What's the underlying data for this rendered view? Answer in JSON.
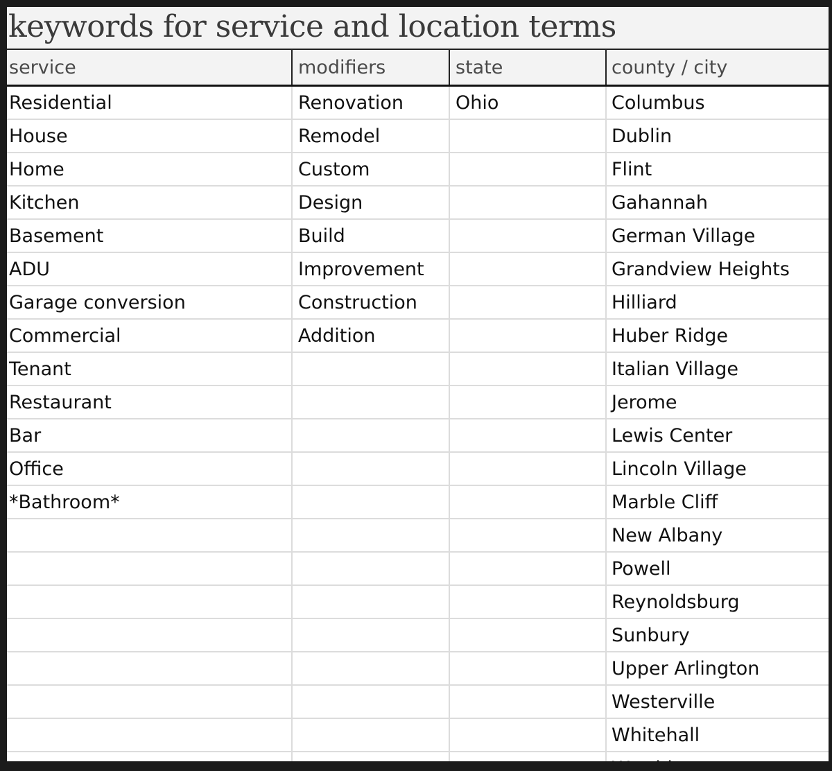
{
  "title": "keywords for service and location terms",
  "headers": [
    "service",
    "modifiers",
    "state",
    "county / city"
  ],
  "columns": {
    "service": [
      "Residential",
      "House",
      "Home",
      "Kitchen",
      "Basement",
      "ADU",
      "Garage conversion",
      "Commercial",
      "Tenant",
      "Restaurant",
      "Bar",
      "Office",
      "*Bathroom*"
    ],
    "modifiers": [
      "Renovation",
      "Remodel",
      "Custom",
      "Design",
      "Build",
      "Improvement",
      "Construction",
      "Addition"
    ],
    "state": [
      "Ohio"
    ],
    "city": [
      "Columbus",
      "Dublin",
      "Flint",
      "Gahannah",
      "German Village",
      "Grandview Heights",
      "Hilliard",
      "Huber Ridge",
      "Italian Village",
      "Jerome",
      "Lewis Center",
      "Lincoln Village",
      "Marble Cliff",
      "New Albany",
      "Powell",
      "Reynoldsburg",
      "Sunbury",
      "Upper Arlington",
      "Westerville",
      "Whitehall",
      "Worthington"
    ]
  }
}
